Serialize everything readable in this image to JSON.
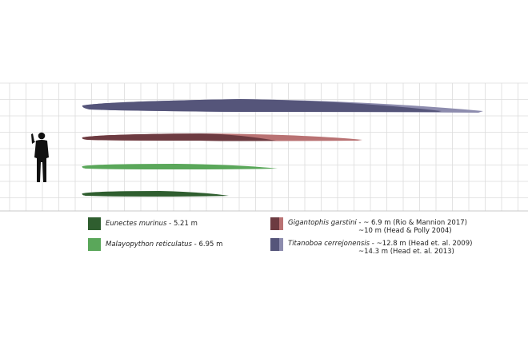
{
  "colors": {
    "grid": "#dcdcdc",
    "human": "#111111",
    "eunectes": "#2f5e2f",
    "malayopython": "#5aa75a",
    "gigantophis_dark": "#6d3b41",
    "gigantophis_light": "#b97273",
    "titanoboa_dark": "#55557a",
    "titanoboa_light": "#8d8cae"
  },
  "legend": [
    {
      "id": "eunectes",
      "species": "Eunectes murinus",
      "detail": " - 5.21 m"
    },
    {
      "id": "malayopython",
      "species": "Malayopython reticulatus",
      "detail": " - 6.95 m"
    },
    {
      "id": "gigantophis",
      "species": "Gigantophis garstini",
      "detail": " - ~ 6.9 m  (Rio & Mannion 2017)",
      "detail2": "~10 m  (Head & Polly 2004)"
    },
    {
      "id": "titanoboa",
      "species": "Titanoboa cerrejonensis",
      "detail": " - ~12.8 m  (Head et. al. 2009)",
      "detail2": "~14.3 m  (Head et. al. 2013)"
    }
  ],
  "icons": {
    "human": "human-silhouette-icon"
  }
}
